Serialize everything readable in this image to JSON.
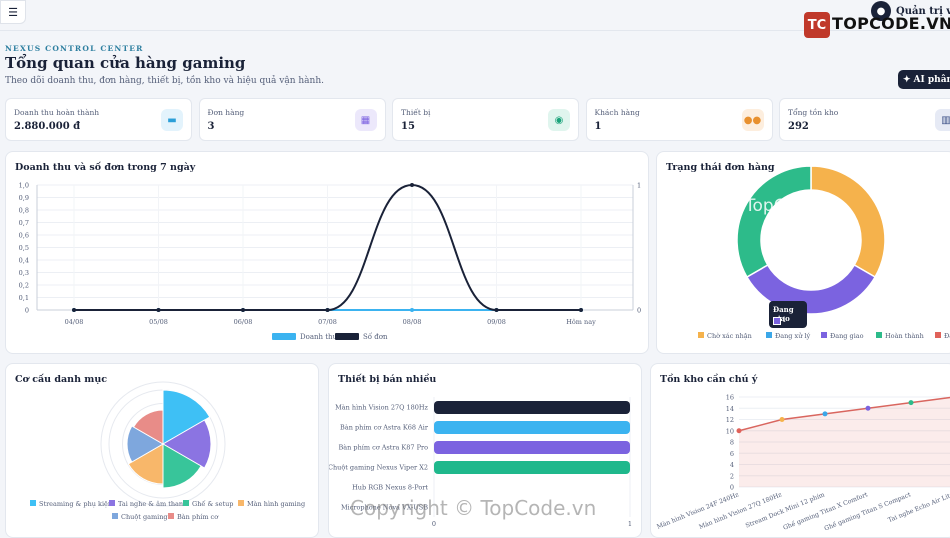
{
  "topbar": {
    "user_name": "Quản trị viên"
  },
  "brand": {
    "logo_text": "TC",
    "name_part1": "TOPCODE",
    "name_part2": ".VN"
  },
  "header": {
    "eyebrow": "NEXUS CONTROL CENTER",
    "title": "Tổng quan cửa hàng gaming",
    "subtitle": "Theo dõi doanh thu, đơn hàng, thiết bị, tồn kho và hiệu quả vận hành.",
    "ai_button": "AI phân t"
  },
  "stats": [
    {
      "label": "Doanh thu hoàn thành",
      "value": "2.880.000 đ",
      "icon": "wallet-icon",
      "icon_bg": "#e3f3fc",
      "icon_color": "#2c9fd8"
    },
    {
      "label": "Đơn hàng",
      "value": "3",
      "icon": "calendar-icon",
      "icon_bg": "#ece8fb",
      "icon_color": "#7a5fe0"
    },
    {
      "label": "Thiết bị",
      "value": "15",
      "icon": "gamepad-icon",
      "icon_bg": "#e0f5ee",
      "icon_color": "#1aa37a"
    },
    {
      "label": "Khách hàng",
      "value": "1",
      "icon": "users-icon",
      "icon_bg": "#fdeede",
      "icon_color": "#e8902e"
    },
    {
      "label": "Tổng tồn kho",
      "value": "292",
      "icon": "warehouse-icon",
      "icon_bg": "#e6eaf5",
      "icon_color": "#3b4f86"
    }
  ],
  "revenue_chart": {
    "title": "Doanh thu và số đơn trong 7 ngày",
    "chart_data": {
      "type": "line",
      "categories": [
        "04/08",
        "05/08",
        "06/08",
        "07/08",
        "08/08",
        "09/08",
        "Hôm nay"
      ],
      "series": [
        {
          "name": "Doanh thu",
          "values": [
            0,
            0,
            0,
            0,
            0,
            0,
            0
          ],
          "color": "#3bb3f0"
        },
        {
          "name": "Số đơn",
          "values": [
            0,
            0,
            0,
            0,
            1,
            0,
            0
          ],
          "color": "#1a2238"
        }
      ],
      "y_ticks": [
        "1,0",
        "0,9",
        "0,8",
        "0,7",
        "0,6",
        "0,5",
        "0,4",
        "0,3",
        "0,2",
        "0,1",
        "0"
      ],
      "y2_ticks": [
        "1",
        "0"
      ],
      "ylim": [
        0,
        1
      ],
      "legend_position": "bottom",
      "grid": true
    }
  },
  "status_chart": {
    "title": "Trạng thái đơn hàng",
    "tooltip_title": "Đang giao",
    "tooltip_value": "1",
    "chart_data": {
      "type": "pie",
      "categories": [
        "Chờ xác nhận",
        "Đang xử lý",
        "Đang giao",
        "Hoàn thành",
        "Đã hủy"
      ],
      "values": [
        1,
        0,
        1,
        1,
        0
      ],
      "colors": [
        "#f5b24c",
        "#3ba7e8",
        "#7b63e0",
        "#2dbb8a",
        "#e0625a"
      ],
      "legend_position": "bottom"
    }
  },
  "category_chart": {
    "title": "Cơ cấu danh mục",
    "chart_data": {
      "type": "pie",
      "categories": [
        "Streaming & phụ kiện",
        "Tai nghe & âm thanh",
        "Ghế & setup",
        "Màn hình gaming",
        "Chuột gaming",
        "Bàn phím cơ"
      ],
      "values": [
        1,
        1,
        1,
        1,
        1,
        1
      ],
      "colors": [
        "#3ec0f5",
        "#8b74e2",
        "#38c59a",
        "#f8b76a",
        "#7ea7dd",
        "#e88c88"
      ],
      "legend_position": "bottom"
    }
  },
  "best_sellers": {
    "title": "Thiết bị bán nhiều",
    "chart_data": {
      "type": "bar",
      "categories": [
        "Màn hình Vision 27Q 180Hz",
        "Bàn phím cơ Astra K68 Air",
        "Bàn phím cơ Astra K87 Pro",
        "Chuột gaming Nexus Viper X2",
        "Hub RGB Nexus 8-Port",
        "Microphone Nova VX-USB"
      ],
      "values": [
        1,
        1,
        1,
        1,
        0,
        0
      ],
      "colors": [
        "#1a2238",
        "#3bb3f0",
        "#7b63e0",
        "#1fb88c",
        "#cccccc",
        "#cccccc"
      ],
      "x_ticks": [
        "0",
        "1"
      ],
      "xlim": [
        0,
        1
      ]
    }
  },
  "low_stock": {
    "title": "Tồn kho cần chú ý",
    "chart_data": {
      "type": "area",
      "categories": [
        "Màn hình Vision 24F 240Hz",
        "Màn hình Vision 27Q 180Hz",
        "Stream Dock Mini 12 phím",
        "Ghế gaming Titan X Comfort",
        "Ghế gaming Titan S Compact",
        "Tai nghe Echo Air Lite"
      ],
      "values": [
        10,
        12,
        13,
        14,
        15,
        16
      ],
      "point_colors": [
        "#e0625a",
        "#f5b24c",
        "#3ba7e8",
        "#7b63e0",
        "#2dbb8a",
        "#e0625a"
      ],
      "y_ticks": [
        "16",
        "14",
        "12",
        "10",
        "8",
        "6",
        "4",
        "2",
        "0"
      ],
      "ylim": [
        0,
        16
      ]
    }
  },
  "watermarks": {
    "bottom": "Copyright © TopCode.vn",
    "middle": "TopCode.vn"
  }
}
